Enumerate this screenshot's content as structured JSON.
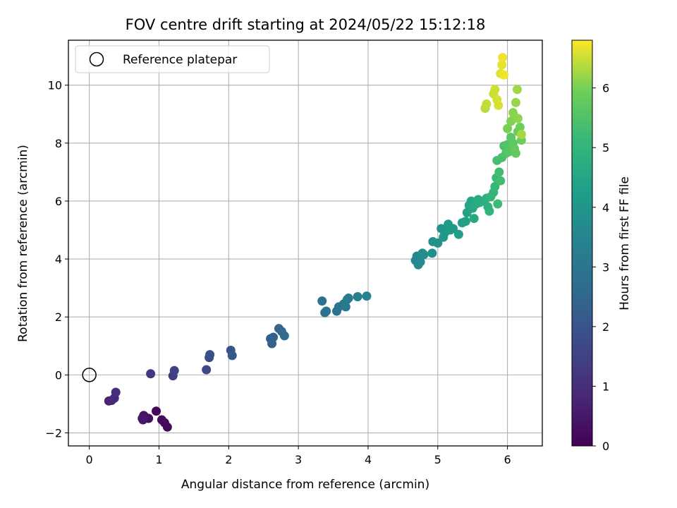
{
  "chart_data": {
    "type": "scatter",
    "title": "FOV centre drift starting at 2024/05/22 15:12:18",
    "xlabel": "Angular distance from reference (arcmin)",
    "ylabel": "Rotation from reference (arcmin)",
    "xlim": [
      -0.3,
      6.5
    ],
    "ylim": [
      -2.45,
      11.55
    ],
    "xticks": [
      0,
      1,
      2,
      3,
      4,
      5,
      6
    ],
    "yticks": [
      -2,
      0,
      2,
      4,
      6,
      8,
      10
    ],
    "grid": true,
    "legend": {
      "placement": "top-left",
      "entries": [
        "Reference platepar"
      ]
    },
    "reference_point": {
      "x": 0,
      "y": 0,
      "label": "Reference platepar"
    },
    "colorbar": {
      "label": "Hours from first FF file",
      "colormap": "viridis",
      "range": [
        0,
        6.8
      ],
      "ticks": [
        0,
        1,
        2,
        3,
        4,
        5,
        6
      ]
    },
    "series": [
      {
        "points": [
          [
            0.96,
            -1.25,
            0.1
          ],
          [
            1.12,
            -1.8,
            0.15
          ],
          [
            1.08,
            -1.65,
            0.2
          ],
          [
            1.04,
            -1.55,
            0.25
          ],
          [
            0.85,
            -1.5,
            0.3
          ],
          [
            0.8,
            -1.45,
            0.35
          ],
          [
            0.78,
            -1.4,
            0.4
          ],
          [
            0.76,
            -1.5,
            0.45
          ],
          [
            0.77,
            -1.55,
            0.5
          ],
          [
            0.28,
            -0.9,
            0.7
          ],
          [
            0.32,
            -0.88,
            0.8
          ],
          [
            0.36,
            -0.8,
            0.9
          ],
          [
            0.38,
            -0.6,
            1.0
          ],
          [
            0.88,
            0.04,
            1.2
          ],
          [
            1.2,
            -0.03,
            1.4
          ],
          [
            1.22,
            0.15,
            1.5
          ],
          [
            1.68,
            0.18,
            1.7
          ],
          [
            1.72,
            0.6,
            1.8
          ],
          [
            1.73,
            0.7,
            1.9
          ],
          [
            2.03,
            0.85,
            2.0
          ],
          [
            2.05,
            0.67,
            2.1
          ],
          [
            2.6,
            1.25,
            2.2
          ],
          [
            2.62,
            1.08,
            2.3
          ],
          [
            2.64,
            1.3,
            2.4
          ],
          [
            2.72,
            1.6,
            2.5
          ],
          [
            2.76,
            1.5,
            2.55
          ],
          [
            2.8,
            1.35,
            2.6
          ],
          [
            3.34,
            2.55,
            2.8
          ],
          [
            3.38,
            2.15,
            2.85
          ],
          [
            3.4,
            2.2,
            2.9
          ],
          [
            3.55,
            2.2,
            2.95
          ],
          [
            3.58,
            2.35,
            3.0
          ],
          [
            3.65,
            2.45,
            3.05
          ],
          [
            3.68,
            2.35,
            3.1
          ],
          [
            3.7,
            2.6,
            3.15
          ],
          [
            3.72,
            2.65,
            3.2
          ],
          [
            3.85,
            2.7,
            3.3
          ],
          [
            3.98,
            2.72,
            3.4
          ],
          [
            4.68,
            3.95,
            3.5
          ],
          [
            4.7,
            4.1,
            3.55
          ],
          [
            4.72,
            3.8,
            3.6
          ],
          [
            4.75,
            3.9,
            3.65
          ],
          [
            4.78,
            4.2,
            3.7
          ],
          [
            4.8,
            4.15,
            3.75
          ],
          [
            4.92,
            4.2,
            3.8
          ],
          [
            4.93,
            4.6,
            3.85
          ],
          [
            5.0,
            4.55,
            3.9
          ],
          [
            5.05,
            5.05,
            3.95
          ],
          [
            5.08,
            4.75,
            4.0
          ],
          [
            5.1,
            4.9,
            4.05
          ],
          [
            5.15,
            5.2,
            4.1
          ],
          [
            5.18,
            5.0,
            4.15
          ],
          [
            5.22,
            5.05,
            4.2
          ],
          [
            5.3,
            4.85,
            4.25
          ],
          [
            5.35,
            5.25,
            4.3
          ],
          [
            5.4,
            5.3,
            4.35
          ],
          [
            5.42,
            5.6,
            4.4
          ],
          [
            5.45,
            5.85,
            4.45
          ],
          [
            5.48,
            6.0,
            4.5
          ],
          [
            5.5,
            5.75,
            4.55
          ],
          [
            5.52,
            5.4,
            4.6
          ],
          [
            5.55,
            5.9,
            4.65
          ],
          [
            5.58,
            6.05,
            4.7
          ],
          [
            5.6,
            5.95,
            4.75
          ],
          [
            5.65,
            6.0,
            4.8
          ],
          [
            5.7,
            6.1,
            4.85
          ],
          [
            5.72,
            5.8,
            4.9
          ],
          [
            5.74,
            5.65,
            4.95
          ],
          [
            5.76,
            6.15,
            5.0
          ],
          [
            5.8,
            6.3,
            5.05
          ],
          [
            5.82,
            6.5,
            5.1
          ],
          [
            5.84,
            6.8,
            5.15
          ],
          [
            5.86,
            5.9,
            5.2
          ],
          [
            5.88,
            7.0,
            5.25
          ],
          [
            5.9,
            6.7,
            5.3
          ],
          [
            5.85,
            7.4,
            5.35
          ],
          [
            5.92,
            7.5,
            5.4
          ],
          [
            5.95,
            7.9,
            5.45
          ],
          [
            5.98,
            7.65,
            5.5
          ],
          [
            6.0,
            7.95,
            5.55
          ],
          [
            6.02,
            7.7,
            5.6
          ],
          [
            6.05,
            8.2,
            5.65
          ],
          [
            6.08,
            8.0,
            5.7
          ],
          [
            6.1,
            7.8,
            5.75
          ],
          [
            6.12,
            7.65,
            5.8
          ],
          [
            6.15,
            8.4,
            5.85
          ],
          [
            6.2,
            8.1,
            5.9
          ],
          [
            6.18,
            8.55,
            5.95
          ],
          [
            6.0,
            8.5,
            6.0
          ],
          [
            6.05,
            8.75,
            6.05
          ],
          [
            6.1,
            8.9,
            6.1
          ],
          [
            6.08,
            9.05,
            6.12
          ],
          [
            6.15,
            8.85,
            6.15
          ],
          [
            6.12,
            9.4,
            6.2
          ],
          [
            6.14,
            9.85,
            6.25
          ],
          [
            6.2,
            8.3,
            6.28
          ],
          [
            5.68,
            9.2,
            6.4
          ],
          [
            5.7,
            9.35,
            6.45
          ],
          [
            5.8,
            9.7,
            6.5
          ],
          [
            5.82,
            9.85,
            6.52
          ],
          [
            5.85,
            9.5,
            6.55
          ],
          [
            5.87,
            9.3,
            6.58
          ],
          [
            5.9,
            10.4,
            6.62
          ],
          [
            5.92,
            10.7,
            6.65
          ],
          [
            5.93,
            10.95,
            6.7
          ],
          [
            5.95,
            10.35,
            6.72
          ]
        ]
      }
    ]
  }
}
